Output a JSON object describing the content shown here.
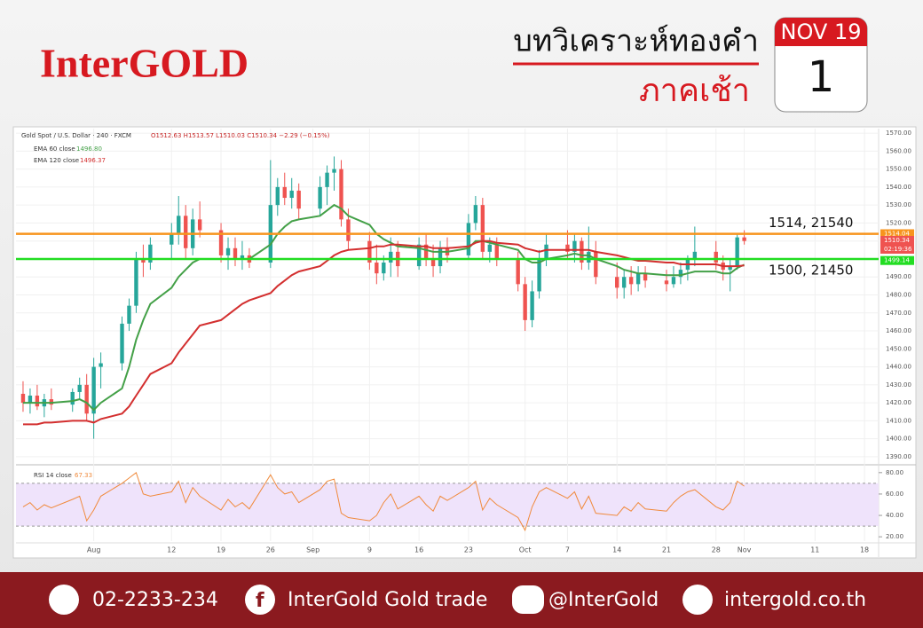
{
  "header": {
    "brand": "InterGOLD",
    "title": "บทวิเคราะห์ทองคำ",
    "subtitle": "ภาคเช้า",
    "calendar_month": "NOV 19",
    "calendar_day": "1"
  },
  "chart_data": {
    "type": "candlestick",
    "legend_title": "Gold Spot / U.S. Dollar · 240 · FXCM",
    "legend_ohlc": "O1512.63 H1513.57 L1510.03 C1510.34 −2.29 (−0.15%)",
    "x": [
      -10,
      -9,
      -8,
      -7,
      -6,
      -3,
      -2,
      -1,
      0,
      1,
      4,
      5,
      6,
      7,
      8,
      11,
      12,
      13,
      14,
      15,
      18,
      19,
      20,
      21,
      22,
      25,
      26,
      27,
      28,
      29,
      32,
      33,
      34,
      35,
      36,
      39,
      40,
      41,
      42,
      43,
      46,
      47,
      48,
      49,
      50,
      53,
      54,
      55,
      56,
      57,
      60,
      61,
      62,
      63,
      64,
      67,
      68,
      69,
      70,
      71,
      74,
      75,
      76,
      77,
      78,
      81,
      82,
      83,
      84,
      85,
      88,
      89,
      90,
      91,
      92
    ],
    "open": [
      1425,
      1420,
      1424,
      1418,
      1422,
      1419,
      1426,
      1430,
      1414,
      1440,
      1442,
      1464,
      1474,
      1500,
      1498,
      1508,
      1514,
      1524,
      1506,
      1522,
      1516,
      1502,
      1506,
      1500,
      1502,
      1498,
      1530,
      1540,
      1534,
      1538,
      1528,
      1540,
      1548,
      1550,
      1522,
      1510,
      1498,
      1492,
      1498,
      1504,
      1496,
      1508,
      1500,
      1496,
      1506,
      1502,
      1520,
      1530,
      1504,
      1508,
      1500,
      1486,
      1466,
      1482,
      1500,
      1508,
      1504,
      1510,
      1498,
      1504,
      1490,
      1484,
      1490,
      1486,
      1492,
      1488,
      1486,
      1490,
      1494,
      1500,
      1504,
      1498,
      1494,
      1496,
      1512
    ],
    "high": [
      1432,
      1428,
      1430,
      1425,
      1428,
      1428,
      1434,
      1436,
      1445,
      1448,
      1468,
      1478,
      1504,
      1508,
      1512,
      1520,
      1535,
      1530,
      1528,
      1532,
      1520,
      1512,
      1512,
      1510,
      1506,
      1555,
      1545,
      1548,
      1545,
      1542,
      1546,
      1552,
      1557,
      1555,
      1528,
      1515,
      1508,
      1502,
      1512,
      1510,
      1512,
      1514,
      1508,
      1510,
      1512,
      1525,
      1535,
      1534,
      1512,
      1512,
      1504,
      1490,
      1488,
      1505,
      1514,
      1516,
      1514,
      1512,
      1518,
      1510,
      1498,
      1494,
      1496,
      1496,
      1496,
      1494,
      1496,
      1498,
      1502,
      1518,
      1510,
      1502,
      1500,
      1514,
      1516
    ],
    "low": [
      1415,
      1414,
      1416,
      1412,
      1416,
      1415,
      1422,
      1410,
      1400,
      1428,
      1438,
      1460,
      1470,
      1490,
      1494,
      1500,
      1508,
      1500,
      1502,
      1512,
      1498,
      1494,
      1496,
      1494,
      1495,
      1495,
      1524,
      1530,
      1528,
      1522,
      1524,
      1530,
      1538,
      1518,
      1505,
      1494,
      1486,
      1488,
      1490,
      1490,
      1494,
      1496,
      1490,
      1492,
      1498,
      1500,
      1516,
      1500,
      1498,
      1496,
      1482,
      1460,
      1462,
      1478,
      1496,
      1500,
      1498,
      1494,
      1494,
      1486,
      1478,
      1478,
      1480,
      1482,
      1484,
      1482,
      1484,
      1486,
      1488,
      1496,
      1494,
      1488,
      1482,
      1494,
      1508
    ],
    "close": [
      1420,
      1424,
      1418,
      1422,
      1419,
      1426,
      1430,
      1414,
      1440,
      1442,
      1464,
      1474,
      1500,
      1498,
      1508,
      1514,
      1524,
      1506,
      1522,
      1516,
      1502,
      1506,
      1500,
      1502,
      1498,
      1530,
      1540,
      1534,
      1538,
      1528,
      1540,
      1548,
      1550,
      1522,
      1510,
      1498,
      1492,
      1498,
      1504,
      1496,
      1508,
      1500,
      1496,
      1506,
      1502,
      1520,
      1530,
      1504,
      1508,
      1500,
      1486,
      1466,
      1482,
      1500,
      1508,
      1504,
      1510,
      1498,
      1504,
      1490,
      1484,
      1490,
      1486,
      1492,
      1488,
      1486,
      1490,
      1494,
      1500,
      1504,
      1498,
      1494,
      1496,
      1512,
      1510
    ],
    "up_color": "#26a69a",
    "down_color": "#ef5350",
    "xlim": [
      -11,
      111
    ],
    "xticks": [
      {
        "value": 0,
        "label": "Aug"
      },
      {
        "value": 11,
        "label": "12"
      },
      {
        "value": 18,
        "label": "19"
      },
      {
        "value": 25,
        "label": "26"
      },
      {
        "value": 31,
        "label": "Sep"
      },
      {
        "value": 39,
        "label": "9"
      },
      {
        "value": 46,
        "label": "16"
      },
      {
        "value": 53,
        "label": "23"
      },
      {
        "value": 61,
        "label": "Oct"
      },
      {
        "value": 67,
        "label": "7"
      },
      {
        "value": 74,
        "label": "14"
      },
      {
        "value": 81,
        "label": "21"
      },
      {
        "value": 88,
        "label": "28"
      },
      {
        "value": 92,
        "label": "Nov"
      },
      {
        "value": 102,
        "label": "11"
      },
      {
        "value": 109,
        "label": "18"
      }
    ],
    "ylim": [
      1387.5,
      1572.5
    ],
    "yticks": [
      {
        "value": 1390,
        "label": "1390.00"
      },
      {
        "value": 1400,
        "label": "1400.00"
      },
      {
        "value": 1410,
        "label": "1410.00"
      },
      {
        "value": 1420,
        "label": "1420.00"
      },
      {
        "value": 1430,
        "label": "1430.00"
      },
      {
        "value": 1440,
        "label": "1440.00"
      },
      {
        "value": 1450,
        "label": "1450.00"
      },
      {
        "value": 1460,
        "label": "1460.00"
      },
      {
        "value": 1470,
        "label": "1470.00"
      },
      {
        "value": 1480,
        "label": "1480.00"
      },
      {
        "value": 1490,
        "label": "1490.00"
      },
      {
        "value": 1500,
        "label": "1500.00"
      },
      {
        "value": 1510,
        "label": "1510.00"
      },
      {
        "value": 1520,
        "label": "1520.00"
      },
      {
        "value": 1530,
        "label": "1530.00"
      },
      {
        "value": 1540,
        "label": "1540.00"
      },
      {
        "value": 1550,
        "label": "1550.00"
      },
      {
        "value": 1560,
        "label": "1560.00"
      },
      {
        "value": 1570,
        "label": "1570.00"
      }
    ],
    "series": [
      {
        "name": "EMA 60 close",
        "last_label": "1496.80",
        "color": "#43a047",
        "values": [
          1420,
          1420,
          1420,
          1420,
          1420,
          1421,
          1422,
          1420,
          1416,
          1420,
          1428,
          1440,
          1455,
          1466,
          1475,
          1484,
          1490,
          1494,
          1498,
          1500,
          1500,
          1500,
          1500,
          1500,
          1500,
          1508,
          1514,
          1518,
          1521,
          1522,
          1524,
          1527,
          1530,
          1528,
          1524,
          1519,
          1514,
          1511,
          1509,
          1507,
          1506,
          1505,
          1504,
          1504,
          1504,
          1506,
          1510,
          1510,
          1509,
          1508,
          1505,
          1500,
          1498,
          1498,
          1500,
          1502,
          1503,
          1502,
          1502,
          1500,
          1496,
          1494,
          1493,
          1492,
          1492,
          1491,
          1491,
          1491,
          1492,
          1493,
          1493,
          1492,
          1492,
          1495,
          1496.8
        ]
      },
      {
        "name": "EMA 120 close",
        "last_label": "1496.37",
        "color": "#d32f2f",
        "values": [
          1408,
          1408,
          1408,
          1409,
          1409,
          1410,
          1410,
          1410,
          1409,
          1411,
          1414,
          1418,
          1424,
          1430,
          1436,
          1442,
          1448,
          1453,
          1458,
          1463,
          1466,
          1469,
          1472,
          1475,
          1477,
          1481,
          1485,
          1488,
          1491,
          1493,
          1496,
          1499,
          1502,
          1504,
          1505,
          1506,
          1507,
          1507,
          1508,
          1508,
          1507,
          1507,
          1506,
          1506,
          1506,
          1507,
          1509,
          1510,
          1510,
          1509,
          1508,
          1506,
          1505,
          1504,
          1505,
          1505,
          1505,
          1505,
          1505,
          1504,
          1502,
          1501,
          1500,
          1499,
          1499,
          1498,
          1498,
          1497,
          1497,
          1497,
          1497,
          1496,
          1496,
          1496,
          1496.37
        ]
      }
    ],
    "levels": [
      {
        "value": 1514,
        "label": "1514, 21540",
        "color": "#f7941d"
      },
      {
        "value": 1500,
        "label": "1500, 21450",
        "color": "#22dd22"
      }
    ],
    "badges": [
      {
        "value": 1514.04,
        "label": "1514.04",
        "color": "#f7941d"
      },
      {
        "value": 1510.34,
        "label": "1510.34",
        "color": "#ef5350"
      },
      {
        "value": 1499.14,
        "label": "1499.14",
        "color": "#22dd22"
      }
    ],
    "countdown": "02:19:36",
    "rsi": {
      "name": "RSI 14 close",
      "last_label": "67.33",
      "color": "#f08a3c",
      "values": [
        48,
        52,
        45,
        50,
        47,
        55,
        58,
        35,
        45,
        58,
        70,
        75,
        80,
        60,
        58,
        62,
        72,
        52,
        66,
        58,
        45,
        55,
        48,
        52,
        46,
        78,
        66,
        60,
        62,
        52,
        64,
        72,
        74,
        42,
        38,
        35,
        40,
        52,
        60,
        46,
        58,
        50,
        44,
        58,
        54,
        66,
        72,
        45,
        56,
        50,
        38,
        26,
        48,
        62,
        66,
        56,
        62,
        46,
        58,
        42,
        40,
        48,
        44,
        52,
        46,
        44,
        52,
        58,
        62,
        64,
        48,
        45,
        52,
        72,
        67.33
      ],
      "ylim": [
        16,
        84
      ],
      "yticks": [
        {
          "value": 20,
          "label": "20.00"
        },
        {
          "value": 40,
          "label": "40.00"
        },
        {
          "value": 60,
          "label": "60.00"
        },
        {
          "value": 80,
          "label": "80.00"
        }
      ],
      "band": [
        30,
        70
      ]
    }
  },
  "footer": {
    "phone": "02-2233-234",
    "facebook": "InterGold Gold trade",
    "line": "@InterGold",
    "website": "intergold.co.th"
  }
}
